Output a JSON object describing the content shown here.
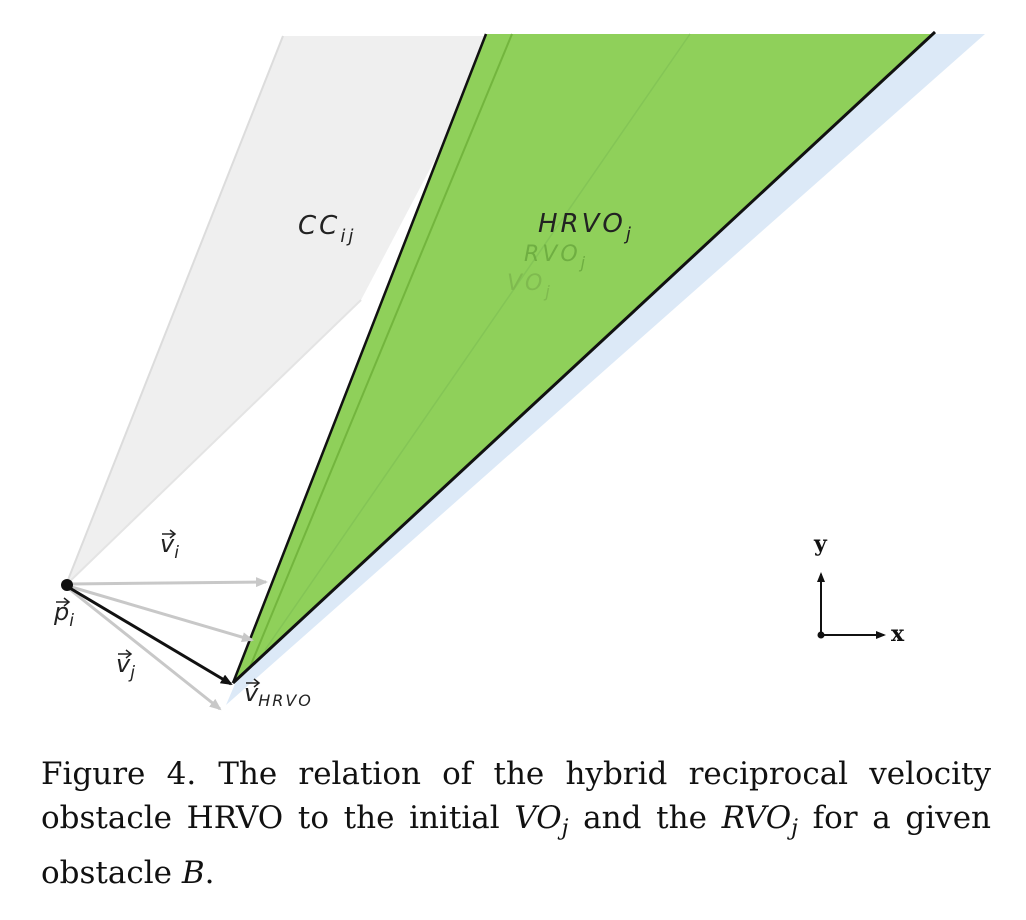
{
  "diagram": {
    "labels": {
      "cc": {
        "base": "CC",
        "sub": "ij"
      },
      "hrvo": {
        "base": "HRVO",
        "sub": "j"
      },
      "rvo": {
        "base": "RVO",
        "sub": "j"
      },
      "vo": {
        "base": "VO",
        "sub": "j"
      },
      "vi": {
        "base": "v",
        "sub": "i"
      },
      "vj": {
        "base": "v",
        "sub": "j"
      },
      "pi": {
        "base": "p",
        "sub": "i"
      },
      "vhrvo": {
        "base": "v",
        "sub": "HRVO"
      }
    },
    "axes": {
      "x": "x",
      "y": "y"
    },
    "colors": {
      "collision_cone": "#efefef",
      "hrvo_fill": "#8fd05a",
      "rvo_fill": "#7fbf45",
      "vo_fill": "#dce9f7",
      "edge": "#111111",
      "vector_gray": "#c8c8c8"
    }
  },
  "caption": {
    "number": "Figure 4.",
    "segments": [
      {
        "text": "The relation of the hybrid reciprocal velocity obstacle HRVO to the initial ",
        "italic": false
      },
      {
        "text": "VO",
        "italic": true
      },
      {
        "text": "j",
        "italic": true,
        "sub": true
      },
      {
        "text": " and the ",
        "italic": false
      },
      {
        "text": "RVO",
        "italic": true
      },
      {
        "text": "j",
        "italic": true,
        "sub": true
      },
      {
        "text": " for a given obstacle ",
        "italic": false
      },
      {
        "text": "B",
        "italic": true
      },
      {
        "text": ".",
        "italic": false
      }
    ]
  }
}
